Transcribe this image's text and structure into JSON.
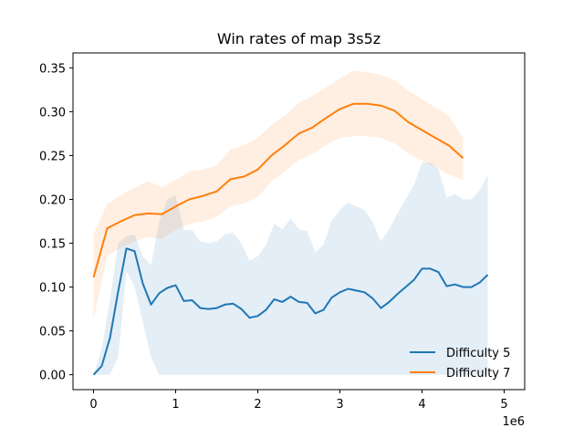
{
  "chart_data": {
    "type": "line",
    "title": "Win rates of map 3s5z",
    "xlabel": "",
    "ylabel": "",
    "x_offset_label": "1e6",
    "xlim": [
      -0.25,
      5.25
    ],
    "ylim": [
      -0.017,
      0.367
    ],
    "x_ticks": [
      0,
      1,
      2,
      3,
      4,
      5
    ],
    "x_tick_labels": [
      "0",
      "1",
      "2",
      "3",
      "4",
      "5"
    ],
    "y_ticks": [
      0.0,
      0.05,
      0.1,
      0.15,
      0.2,
      0.25,
      0.3,
      0.35
    ],
    "y_tick_labels": [
      "0.00",
      "0.05",
      "0.10",
      "0.15",
      "0.20",
      "0.25",
      "0.30",
      "0.35"
    ],
    "grid": false,
    "legend_position": "lower-right",
    "series": [
      {
        "name": "Difficulty 5",
        "color": "#1f77b4",
        "x": [
          0,
          0.1,
          0.2,
          0.3,
          0.4,
          0.5,
          0.6,
          0.7,
          0.8,
          0.9,
          1.0,
          1.1,
          1.2,
          1.3,
          1.4,
          1.5,
          1.6,
          1.7,
          1.8,
          1.9,
          2.0,
          2.1,
          2.2,
          2.3,
          2.4,
          2.5,
          2.6,
          2.7,
          2.8,
          2.9,
          3.0,
          3.1,
          3.2,
          3.3,
          3.4,
          3.5,
          3.6,
          3.7,
          3.8,
          3.9,
          4.0,
          4.1,
          4.2,
          4.3,
          4.4,
          4.5,
          4.6,
          4.7,
          4.8,
          4.9,
          5.0
        ],
        "y": [
          0.0,
          0.01,
          0.042,
          0.095,
          0.144,
          0.141,
          0.104,
          0.08,
          0.093,
          0.099,
          0.102,
          0.084,
          0.085,
          0.076,
          0.075,
          0.076,
          0.08,
          0.081,
          0.075,
          0.065,
          0.067,
          0.074,
          0.086,
          0.083,
          0.089,
          0.083,
          0.082,
          0.07,
          0.074,
          0.088,
          0.094,
          0.098,
          0.096,
          0.094,
          0.087,
          0.076,
          0.083,
          0.092,
          0.1,
          0.108,
          0.121,
          0.121,
          0.117,
          0.101,
          0.103,
          0.1,
          0.1,
          0.105,
          0.114,
          null,
          null
        ],
        "y_lower": [
          0.0,
          0.0,
          0.0,
          0.02,
          0.118,
          0.1,
          0.06,
          0.02,
          0.0,
          0.0,
          0.0,
          0.0,
          0.0,
          0.0,
          0.0,
          0.0,
          0.0,
          0.0,
          0.0,
          0.0,
          0.0,
          0.0,
          0.0,
          0.0,
          0.0,
          0.0,
          0.0,
          0.0,
          0.0,
          0.0,
          0.0,
          0.0,
          0.0,
          0.0,
          0.0,
          0.0,
          0.0,
          0.0,
          0.0,
          0.0,
          0.0,
          0.0,
          0.0,
          0.0,
          0.0,
          0.0,
          0.0,
          0.0,
          0.0,
          null,
          null
        ],
        "y_upper": [
          0.0,
          0.03,
          0.085,
          0.15,
          0.158,
          0.16,
          0.135,
          0.125,
          0.175,
          0.2,
          0.205,
          0.165,
          0.165,
          0.152,
          0.15,
          0.152,
          0.16,
          0.162,
          0.15,
          0.13,
          0.135,
          0.148,
          0.172,
          0.166,
          0.178,
          0.166,
          0.164,
          0.14,
          0.148,
          0.176,
          0.188,
          0.196,
          0.192,
          0.188,
          0.174,
          0.152,
          0.166,
          0.184,
          0.2,
          0.216,
          0.242,
          0.242,
          0.234,
          0.202,
          0.206,
          0.2,
          0.2,
          0.21,
          0.228,
          null,
          null
        ]
      },
      {
        "name": "Difficulty 7",
        "color": "#ff7f0e",
        "x": [
          0,
          0.167,
          0.333,
          0.5,
          0.667,
          0.833,
          1.0,
          1.167,
          1.333,
          1.5,
          1.667,
          1.833,
          2.0,
          2.167,
          2.333,
          2.5,
          2.667,
          2.833,
          3.0,
          3.167,
          3.333,
          3.5,
          3.667,
          3.833,
          4.0,
          4.167,
          4.333,
          4.5,
          4.667,
          4.833,
          5.0
        ],
        "y": [
          0.111,
          0.167,
          0.175,
          0.182,
          0.184,
          0.183,
          0.192,
          0.2,
          0.204,
          0.209,
          0.223,
          0.226,
          0.234,
          0.25,
          0.262,
          0.275,
          0.282,
          0.293,
          0.303,
          0.309,
          0.309,
          0.307,
          0.301,
          0.288,
          0.279,
          0.27,
          0.261,
          0.247,
          null,
          null,
          null
        ],
        "y_lower": [
          0.063,
          0.135,
          0.145,
          0.152,
          0.157,
          0.155,
          0.165,
          0.172,
          0.175,
          0.18,
          0.192,
          0.195,
          0.203,
          0.22,
          0.232,
          0.245,
          0.252,
          0.262,
          0.27,
          0.272,
          0.272,
          0.27,
          0.264,
          0.252,
          0.244,
          0.236,
          0.228,
          0.222,
          null,
          null,
          null
        ],
        "y_upper": [
          0.16,
          0.195,
          0.205,
          0.213,
          0.221,
          0.214,
          0.222,
          0.232,
          0.234,
          0.239,
          0.257,
          0.262,
          0.27,
          0.285,
          0.296,
          0.31,
          0.318,
          0.328,
          0.338,
          0.347,
          0.345,
          0.342,
          0.336,
          0.324,
          0.314,
          0.305,
          0.295,
          0.27,
          null,
          null,
          null
        ]
      }
    ]
  }
}
